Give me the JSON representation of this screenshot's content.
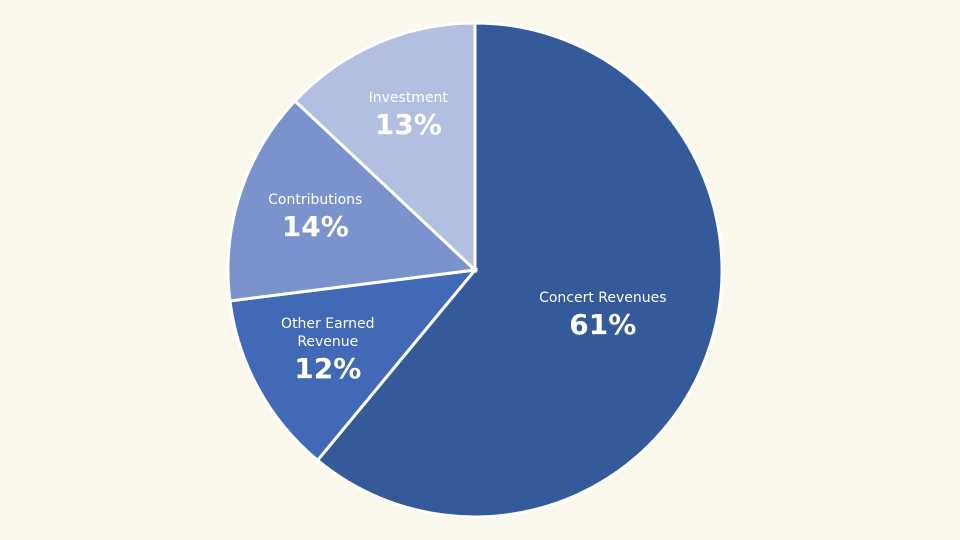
{
  "chart_data": {
    "type": "pie",
    "categories": [
      "Concert Revenues",
      "Other Earned Revenue",
      "Contributions",
      "Investment"
    ],
    "values": [
      61,
      12,
      14,
      13
    ],
    "value_labels": [
      "61%",
      "12%",
      "14%",
      "13%"
    ],
    "colors": [
      "#345a9a",
      "#4169b5",
      "#7b93cc",
      "#b3bfe0"
    ]
  }
}
